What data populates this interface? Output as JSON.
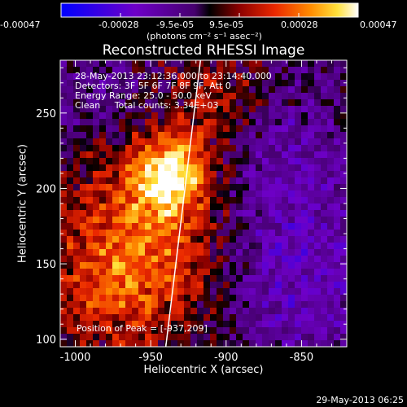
{
  "chart_data": {
    "type": "heatmap",
    "title": "Reconstructed RHESSI Image",
    "xlabel": "Heliocentric X (arcsec)",
    "ylabel": "Heliocentric Y (arcsec)",
    "xlim": [
      -1010,
      -820
    ],
    "ylim": [
      95,
      285
    ],
    "xticks": [
      -1000,
      -950,
      -900,
      -850
    ],
    "yticks": [
      100,
      150,
      200,
      250
    ],
    "colorbar": {
      "ticks": [
        "-0.00047",
        "-0.00028",
        "-9.5e-05",
        "9.5e-05",
        "0.00028",
        "0.00047"
      ],
      "unit_label": "(photons cm⁻² s⁻¹ asec⁻²)",
      "range": [
        -0.00047,
        0.00047
      ]
    },
    "annotations": [
      "28-May-2013 23:12:36.000 to 23:14:40.000",
      "Detectors: 3F 5F 6F 7F 8F 9F, Att 0",
      "Energy Range: 25.0 - 50.0 keV",
      "Clean     Total counts: 3.34E+03"
    ],
    "peak_label": "Position of Peak = [-937,209]",
    "peak": [
      -937,
      209
    ],
    "limb_line": [
      [
        -917,
        285
      ],
      [
        -940,
        95
      ]
    ],
    "timestamp": "29-May-2013 06:25"
  }
}
